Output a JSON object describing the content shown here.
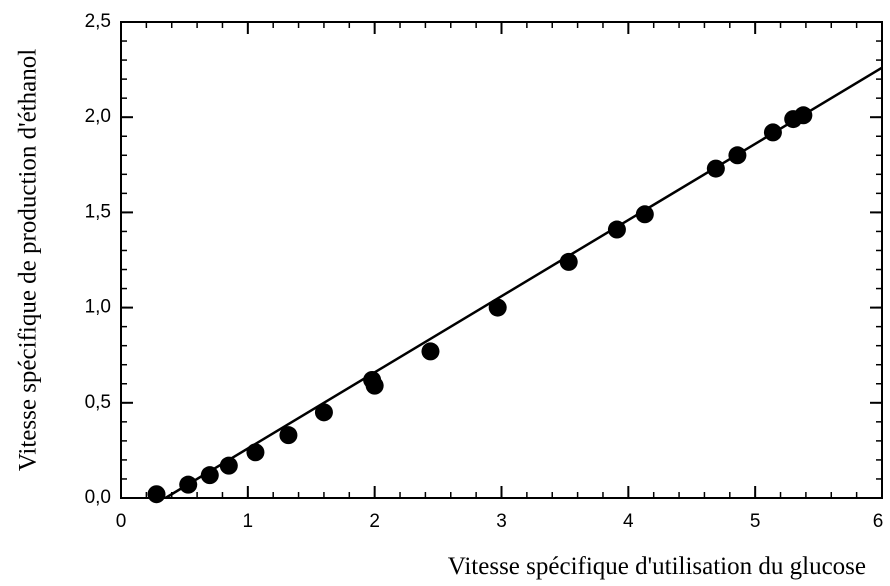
{
  "chart_data": {
    "type": "scatter",
    "x_label": "Vitesse spécifique d'utilisation du glucose",
    "y_label": "Vitesse spécifique de production d'éthanol",
    "x": [
      0.28,
      0.53,
      0.7,
      0.85,
      1.06,
      1.32,
      1.6,
      1.98,
      2.0,
      2.44,
      2.97,
      3.53,
      3.91,
      4.13,
      4.69,
      4.86,
      5.14,
      5.3,
      5.38
    ],
    "values": [
      0.02,
      0.07,
      0.12,
      0.17,
      0.24,
      0.33,
      0.45,
      0.62,
      0.59,
      0.77,
      1.0,
      1.24,
      1.41,
      1.49,
      1.73,
      1.8,
      1.92,
      1.99,
      2.01
    ],
    "color": "#000000",
    "fit": {
      "x": [
        0.35,
        6
      ],
      "values": [
        0,
        2.26
      ]
    },
    "xlim": [
      0,
      6
    ],
    "ylim": [
      0,
      2.5
    ],
    "xticks": [
      0,
      1,
      2,
      3,
      4,
      5,
      6
    ],
    "yticks": [
      {
        "value": 0,
        "label": "0,0"
      },
      {
        "value": 0.5,
        "label": "0,5"
      },
      {
        "value": 1,
        "label": "1,0"
      },
      {
        "value": 1.5,
        "label": "1,5"
      },
      {
        "value": 2,
        "label": "2,0"
      },
      {
        "value": 2.5,
        "label": "2,5"
      }
    ]
  }
}
